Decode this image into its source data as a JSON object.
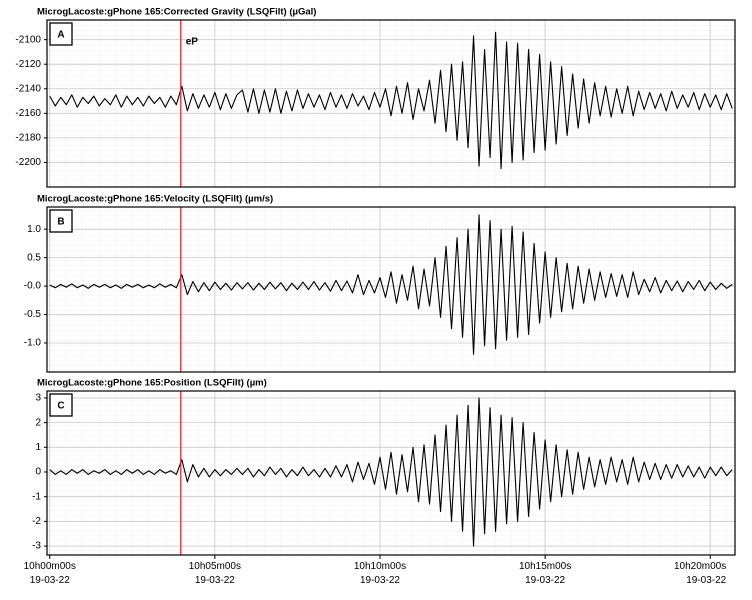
{
  "chart_data": [
    {
      "type": "line",
      "title": "MicrogLacoste:gPhone 165:Corrected Gravity (LSQFilt) (µGal)",
      "panel_label": "A",
      "color": "#000000",
      "grid": true,
      "annotations": [
        {
          "text": "eP",
          "x": 238,
          "color": "#e8202a"
        }
      ],
      "xlim": [
        -5,
        1245
      ],
      "ylim": [
        -2220,
        -2084
      ],
      "yticks": [
        -2100,
        -2120,
        -2140,
        -2160,
        -2180,
        -2200
      ],
      "x": [
        0,
        10,
        20,
        30,
        40,
        50,
        60,
        70,
        80,
        90,
        100,
        110,
        120,
        130,
        140,
        150,
        160,
        170,
        180,
        190,
        200,
        210,
        220,
        230,
        240,
        250,
        260,
        270,
        280,
        290,
        300,
        310,
        320,
        330,
        340,
        350,
        360,
        370,
        380,
        390,
        400,
        410,
        420,
        430,
        440,
        450,
        460,
        470,
        480,
        490,
        500,
        510,
        520,
        530,
        540,
        550,
        560,
        570,
        580,
        590,
        600,
        610,
        620,
        630,
        640,
        650,
        660,
        670,
        680,
        690,
        700,
        710,
        720,
        730,
        740,
        750,
        760,
        770,
        780,
        790,
        800,
        810,
        820,
        830,
        840,
        850,
        860,
        870,
        880,
        890,
        900,
        910,
        920,
        930,
        940,
        950,
        960,
        970,
        980,
        990,
        1000,
        1010,
        1020,
        1030,
        1040,
        1050,
        1060,
        1070,
        1080,
        1090,
        1100,
        1110,
        1120,
        1130,
        1140,
        1150,
        1160,
        1170,
        1180,
        1190,
        1200,
        1210,
        1220,
        1230,
        1240
      ],
      "values": [
        -2146,
        -2154,
        -2147,
        -2153,
        -2145,
        -2155,
        -2147,
        -2152,
        -2146,
        -2154,
        -2148,
        -2153,
        -2145,
        -2155,
        -2146,
        -2153,
        -2147,
        -2154,
        -2146,
        -2152,
        -2147,
        -2155,
        -2146,
        -2153,
        -2138,
        -2158,
        -2144,
        -2156,
        -2145,
        -2155,
        -2143,
        -2157,
        -2144,
        -2156,
        -2145,
        -2141,
        -2159,
        -2140,
        -2160,
        -2141,
        -2159,
        -2140,
        -2160,
        -2142,
        -2158,
        -2141,
        -2156,
        -2144,
        -2155,
        -2145,
        -2157,
        -2143,
        -2155,
        -2145,
        -2156,
        -2144,
        -2154,
        -2146,
        -2157,
        -2143,
        -2155,
        -2140,
        -2162,
        -2138,
        -2160,
        -2135,
        -2165,
        -2140,
        -2158,
        -2133,
        -2168,
        -2125,
        -2175,
        -2120,
        -2182,
        -2118,
        -2188,
        -2097,
        -2203,
        -2108,
        -2196,
        -2094,
        -2205,
        -2102,
        -2200,
        -2103,
        -2198,
        -2108,
        -2192,
        -2112,
        -2190,
        -2118,
        -2185,
        -2122,
        -2178,
        -2128,
        -2172,
        -2132,
        -2168,
        -2135,
        -2162,
        -2138,
        -2163,
        -2140,
        -2160,
        -2138,
        -2162,
        -2142,
        -2157,
        -2143,
        -2156,
        -2144,
        -2158,
        -2142,
        -2156,
        -2145,
        -2155,
        -2143,
        -2157,
        -2144,
        -2155,
        -2145,
        -2157,
        -2144,
        -2156
      ]
    },
    {
      "type": "line",
      "title": "MicrogLacoste:gPhone 165:Velocity (LSQFilt) (µm/s)",
      "panel_label": "B",
      "color": "#000000",
      "grid": true,
      "xlim": [
        -5,
        1245
      ],
      "ylim": [
        -1.51,
        1.39
      ],
      "yticks": [
        {
          "value": 1,
          "label": "1.0"
        },
        0.5,
        {
          "value": 0,
          "label": "-0.0"
        },
        -0.5,
        {
          "value": -1,
          "label": "-1.0"
        }
      ],
      "x": [
        0,
        10,
        20,
        30,
        40,
        50,
        60,
        70,
        80,
        90,
        100,
        110,
        120,
        130,
        140,
        150,
        160,
        170,
        180,
        190,
        200,
        210,
        220,
        230,
        240,
        250,
        260,
        270,
        280,
        290,
        300,
        310,
        320,
        330,
        340,
        350,
        360,
        370,
        380,
        390,
        400,
        410,
        420,
        430,
        440,
        450,
        460,
        470,
        480,
        490,
        500,
        510,
        520,
        530,
        540,
        550,
        560,
        570,
        580,
        590,
        600,
        610,
        620,
        630,
        640,
        650,
        660,
        670,
        680,
        690,
        700,
        710,
        720,
        730,
        740,
        750,
        760,
        770,
        780,
        790,
        800,
        810,
        820,
        830,
        840,
        850,
        860,
        870,
        880,
        890,
        900,
        910,
        920,
        930,
        940,
        950,
        960,
        970,
        980,
        990,
        1000,
        1010,
        1020,
        1030,
        1040,
        1050,
        1060,
        1070,
        1080,
        1090,
        1100,
        1110,
        1120,
        1130,
        1140,
        1150,
        1160,
        1170,
        1180,
        1190,
        1200,
        1210,
        1220,
        1230,
        1240
      ],
      "values": [
        0.02,
        -0.03,
        0.03,
        -0.02,
        0.04,
        -0.03,
        0.02,
        -0.04,
        0.03,
        -0.02,
        0.03,
        -0.03,
        0.02,
        -0.04,
        0.03,
        -0.02,
        0.03,
        -0.03,
        0.02,
        -0.03,
        0.04,
        -0.02,
        0.03,
        -0.03,
        0.2,
        -0.15,
        0.08,
        -0.1,
        0.06,
        -0.08,
        0.07,
        -0.06,
        0.05,
        -0.07,
        0.06,
        -0.05,
        0.06,
        -0.07,
        0.05,
        -0.06,
        0.07,
        -0.05,
        0.06,
        -0.08,
        0.05,
        -0.06,
        0.07,
        -0.06,
        0.08,
        -0.07,
        0.06,
        -0.09,
        0.1,
        -0.08,
        0.09,
        -0.12,
        0.2,
        -0.15,
        0.1,
        -0.12,
        0.15,
        -0.2,
        0.25,
        -0.3,
        0.2,
        -0.25,
        0.35,
        -0.4,
        0.3,
        -0.35,
        0.5,
        -0.55,
        0.7,
        -0.75,
        0.85,
        -0.9,
        1.0,
        -1.2,
        1.25,
        -1.05,
        1.15,
        -1.1,
        1.0,
        -0.95,
        1.05,
        -0.9,
        0.95,
        -0.85,
        0.75,
        -0.65,
        0.6,
        -0.55,
        0.5,
        -0.45,
        0.4,
        -0.4,
        0.35,
        -0.3,
        0.3,
        -0.25,
        0.25,
        -0.2,
        0.22,
        -0.18,
        0.2,
        -0.2,
        0.25,
        -0.15,
        0.12,
        -0.1,
        0.15,
        -0.12,
        0.1,
        -0.08,
        0.09,
        -0.1,
        0.08,
        -0.06,
        0.1,
        -0.08,
        0.07,
        -0.06,
        0.05,
        -0.04,
        0.03
      ]
    },
    {
      "type": "line",
      "title": "MicrogLacoste:gPhone 165:Position (LSQFilt) (µm)",
      "panel_label": "C",
      "color": "#000000",
      "grid": true,
      "xlim": [
        -5,
        1245
      ],
      "ylim": [
        -3.36,
        3.28
      ],
      "yticks": [
        3,
        2,
        1,
        0,
        -1,
        -2,
        -3
      ],
      "xticks": [
        {
          "value": 0,
          "label": "10h00m00s\n19-03-22"
        },
        {
          "value": 300,
          "label": "10h05m00s\n19-03-22"
        },
        {
          "value": 600,
          "label": "10h10m00s\n19-03-22"
        },
        {
          "value": 900,
          "label": "10h15m00s\n19-03-22"
        },
        {
          "value": 1200,
          "label": "10h20m00s\n19-03-22"
        }
      ],
      "x": [
        0,
        10,
        20,
        30,
        40,
        50,
        60,
        70,
        80,
        90,
        100,
        110,
        120,
        130,
        140,
        150,
        160,
        170,
        180,
        190,
        200,
        210,
        220,
        230,
        240,
        250,
        260,
        270,
        280,
        290,
        300,
        310,
        320,
        330,
        340,
        350,
        360,
        370,
        380,
        390,
        400,
        410,
        420,
        430,
        440,
        450,
        460,
        470,
        480,
        490,
        500,
        510,
        520,
        530,
        540,
        550,
        560,
        570,
        580,
        590,
        600,
        610,
        620,
        630,
        640,
        650,
        660,
        670,
        680,
        690,
        700,
        710,
        720,
        730,
        740,
        750,
        760,
        770,
        780,
        790,
        800,
        810,
        820,
        830,
        840,
        850,
        860,
        870,
        880,
        890,
        900,
        910,
        920,
        930,
        940,
        950,
        960,
        970,
        980,
        990,
        1000,
        1010,
        1020,
        1030,
        1040,
        1050,
        1060,
        1070,
        1080,
        1090,
        1100,
        1110,
        1120,
        1130,
        1140,
        1150,
        1160,
        1170,
        1180,
        1190,
        1200,
        1210,
        1220,
        1230,
        1240
      ],
      "values": [
        0.1,
        -0.1,
        0.05,
        -0.1,
        0.1,
        -0.05,
        0.1,
        -0.1,
        0.05,
        -0.05,
        0.1,
        -0.1,
        0.05,
        -0.1,
        0.1,
        -0.05,
        0.1,
        -0.1,
        0.05,
        -0.1,
        0.1,
        -0.05,
        0.05,
        -0.1,
        0.5,
        -0.4,
        0.3,
        -0.2,
        0.15,
        -0.2,
        0.1,
        -0.15,
        0.1,
        -0.1,
        0.15,
        -0.1,
        0.15,
        -0.2,
        0.1,
        -0.15,
        0.2,
        -0.1,
        0.15,
        -0.2,
        0.1,
        -0.15,
        0.2,
        -0.15,
        0.1,
        -0.2,
        0.15,
        -0.2,
        0.25,
        -0.2,
        0.3,
        -0.4,
        0.4,
        -0.3,
        0.35,
        -0.5,
        0.6,
        -0.7,
        0.8,
        -0.9,
        0.7,
        -0.8,
        1.0,
        -1.2,
        1.1,
        -1.3,
        1.5,
        -1.6,
        1.9,
        -2.0,
        2.3,
        -2.4,
        2.7,
        -3.0,
        3.0,
        -2.5,
        2.6,
        -2.4,
        2.3,
        -2.1,
        2.2,
        -2.0,
        2.0,
        -1.8,
        1.6,
        -1.5,
        1.3,
        -1.2,
        1.1,
        -1.0,
        0.9,
        -0.9,
        0.8,
        -0.7,
        0.6,
        -0.6,
        0.5,
        -0.5,
        0.6,
        -0.4,
        0.5,
        -0.5,
        0.6,
        -0.4,
        0.4,
        -0.3,
        0.35,
        -0.3,
        0.3,
        -0.25,
        0.3,
        -0.2,
        0.25,
        -0.2,
        0.2,
        -0.25,
        0.2,
        -0.15,
        0.2,
        -0.15,
        0.1
      ]
    }
  ]
}
